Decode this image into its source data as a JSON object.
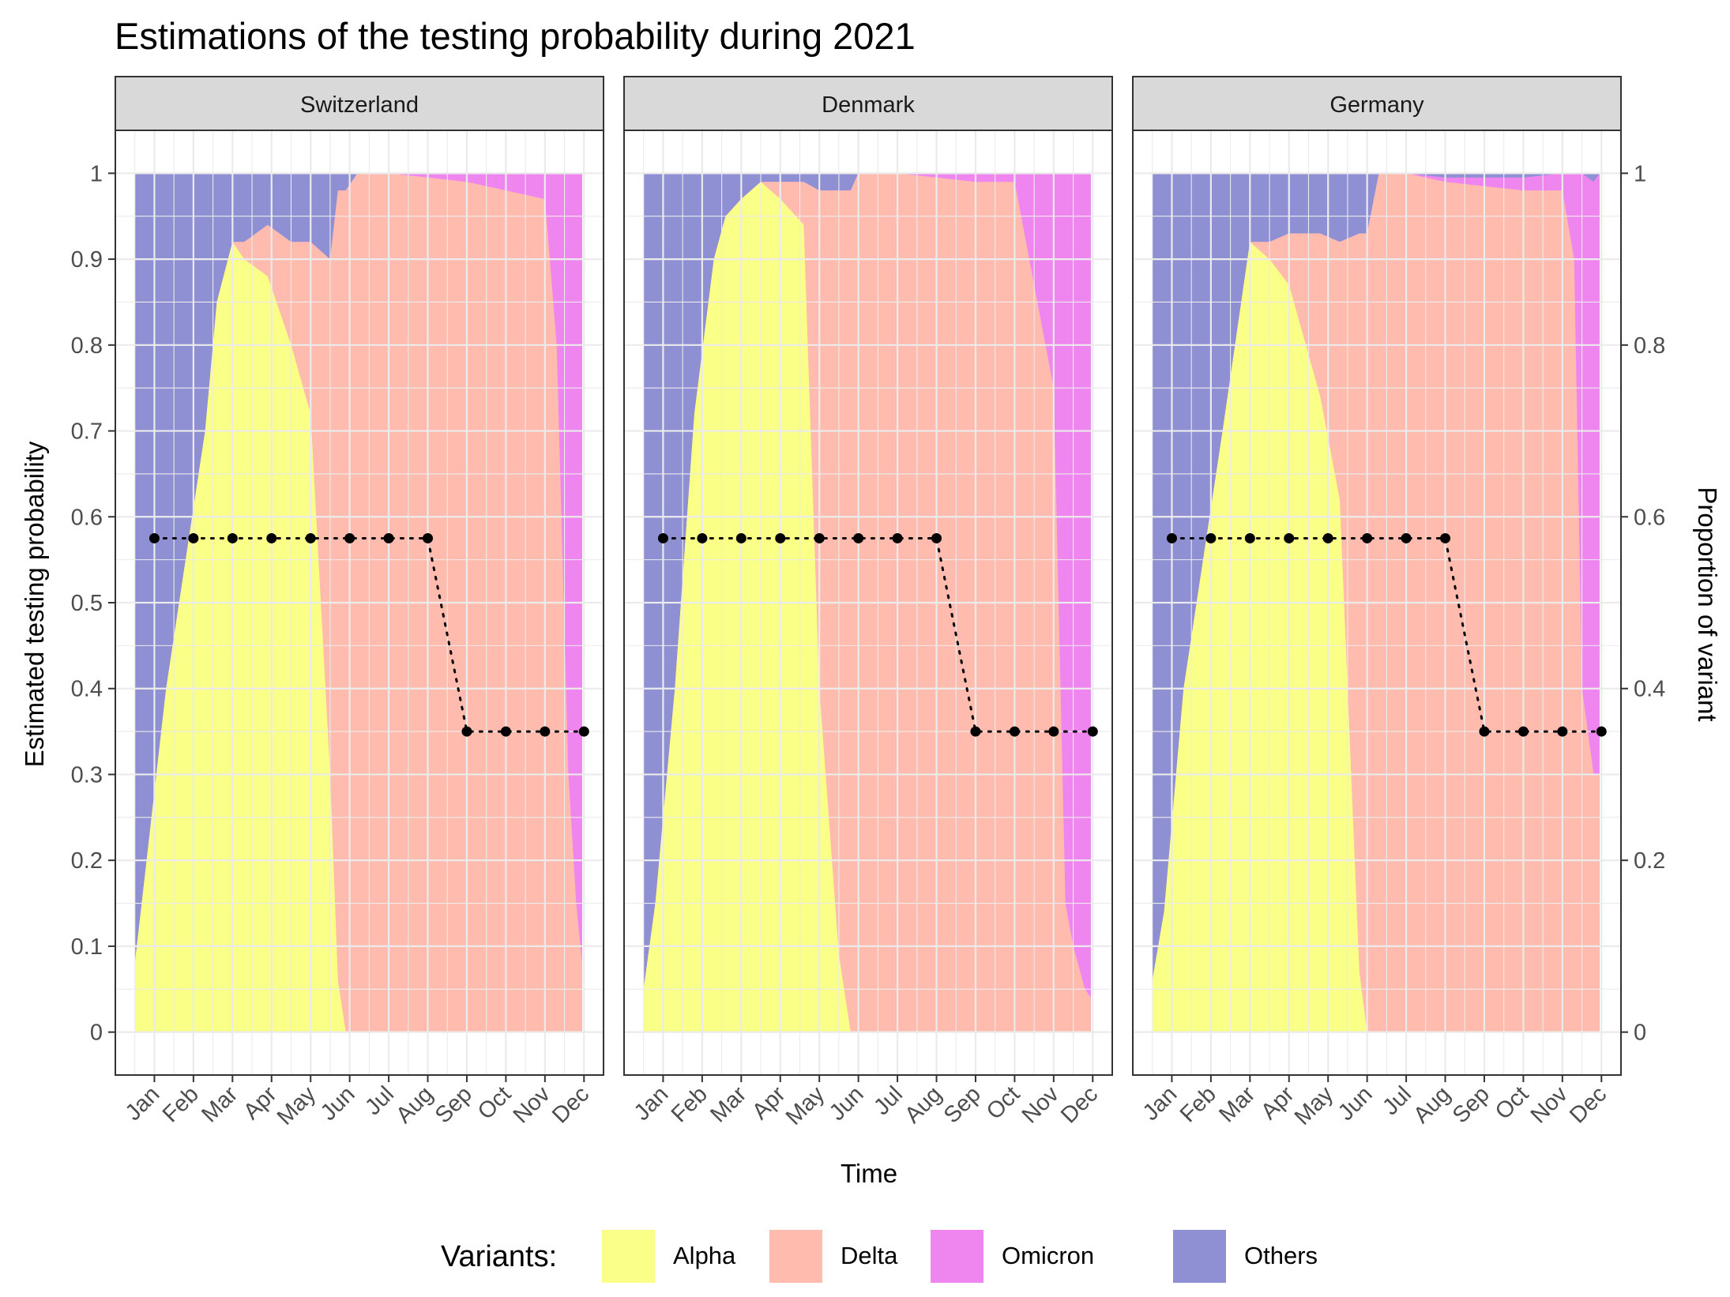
{
  "chart_data": {
    "type": "area",
    "title": "Estimations of the testing probability during 2021",
    "xlabel": "Time",
    "ylabel": "Estimated testing probability",
    "y2label": "Proportion of variant",
    "ylim": [
      -0.05,
      1.05
    ],
    "y_ticks": [
      0,
      0.1,
      0.2,
      0.3,
      0.4,
      0.5,
      0.6,
      0.7,
      0.8,
      0.9,
      1
    ],
    "y_tick_labels": [
      "0",
      "0.1",
      "0.2",
      "0.3",
      "0.4",
      "0.5",
      "0.6",
      "0.7",
      "0.8",
      "0.9",
      "1"
    ],
    "y2_ticks": [
      0,
      0.2,
      0.4,
      0.6,
      0.8,
      1
    ],
    "y2_tick_labels": [
      "0",
      "0.2",
      "0.4",
      "0.6",
      "0.8",
      "1"
    ],
    "x_tick_labels": [
      "Jan",
      "Feb",
      "Mar",
      "Apr",
      "May",
      "Jun",
      "Jul",
      "Aug",
      "Sep",
      "Oct",
      "Nov",
      "Dec"
    ],
    "legend": {
      "title": "Variants:",
      "position": "bottom",
      "items": [
        {
          "name": "Alpha",
          "color": "#FAFF87"
        },
        {
          "name": "Delta",
          "color": "#FFBCAE"
        },
        {
          "name": "Omicron",
          "color": "#EF86F0"
        },
        {
          "name": "Others",
          "color": "#8F8FD4"
        }
      ]
    },
    "grid": true,
    "panels": [
      {
        "name": "Switzerland",
        "testing_probability": {
          "months": [
            1,
            2,
            3,
            4,
            5,
            6,
            7,
            8,
            9,
            10,
            11,
            12
          ],
          "values": [
            0.575,
            0.575,
            0.575,
            0.575,
            0.575,
            0.575,
            0.575,
            0.575,
            0.35,
            0.35,
            0.35,
            0.35
          ]
        },
        "variant_shares": {
          "x": [
            0.5,
            0.8,
            1.3,
            1.8,
            2.3,
            2.6,
            3.0,
            3.3,
            3.9,
            4.5,
            5.0,
            5.5,
            5.7,
            5.9,
            6.2,
            6.5,
            7.0,
            8.0,
            9.0,
            10.0,
            11.0,
            11.3,
            11.6,
            11.8,
            11.95
          ],
          "alpha": [
            0.08,
            0.2,
            0.4,
            0.55,
            0.7,
            0.85,
            0.92,
            0.9,
            0.88,
            0.8,
            0.72,
            0.3,
            0.06,
            0.0,
            0.0,
            0.0,
            0.0,
            0.0,
            0.0,
            0.0,
            0.0,
            0.0,
            0.0,
            0.0,
            0.0
          ],
          "delta": [
            0.0,
            0.0,
            0.0,
            0.0,
            0.0,
            0.0,
            0.0,
            0.02,
            0.06,
            0.12,
            0.2,
            0.6,
            0.92,
            0.98,
            1.0,
            1.0,
            1.0,
            0.995,
            0.99,
            0.98,
            0.97,
            0.8,
            0.3,
            0.15,
            0.08
          ],
          "omicron": [
            0.0,
            0.0,
            0.0,
            0.0,
            0.0,
            0.0,
            0.0,
            0.0,
            0.0,
            0.0,
            0.0,
            0.0,
            0.0,
            0.0,
            0.0,
            0.0,
            0.0,
            0.005,
            0.01,
            0.02,
            0.03,
            0.2,
            0.7,
            0.85,
            0.92
          ],
          "others": [
            0.92,
            0.8,
            0.6,
            0.45,
            0.3,
            0.15,
            0.08,
            0.08,
            0.06,
            0.08,
            0.08,
            0.1,
            0.02,
            0.02,
            0.0,
            0.0,
            0.0,
            0.0,
            0.0,
            0.0,
            0.0,
            0.0,
            0.0,
            0.0,
            0.0
          ]
        }
      },
      {
        "name": "Denmark",
        "testing_probability": {
          "months": [
            1,
            2,
            3,
            4,
            5,
            6,
            7,
            8,
            9,
            10,
            11,
            12
          ],
          "values": [
            0.575,
            0.575,
            0.575,
            0.575,
            0.575,
            0.575,
            0.575,
            0.575,
            0.35,
            0.35,
            0.35,
            0.35
          ]
        },
        "variant_shares": {
          "x": [
            0.5,
            0.8,
            1.3,
            1.8,
            2.3,
            2.6,
            3.0,
            3.5,
            4.0,
            4.6,
            5.0,
            5.5,
            5.8,
            6.0,
            6.2,
            7.0,
            8.0,
            9.0,
            10.0,
            11.0,
            11.3,
            11.5,
            11.8,
            11.95
          ],
          "alpha": [
            0.05,
            0.15,
            0.4,
            0.72,
            0.9,
            0.95,
            0.97,
            0.99,
            0.97,
            0.94,
            0.4,
            0.09,
            0.0,
            0.0,
            0.0,
            0.0,
            0.0,
            0.0,
            0.0,
            0.0,
            0.0,
            0.0,
            0.0,
            0.0
          ],
          "delta": [
            0.0,
            0.0,
            0.0,
            0.0,
            0.0,
            0.0,
            0.0,
            0.0,
            0.02,
            0.05,
            0.58,
            0.89,
            0.98,
            1.0,
            1.0,
            1.0,
            0.995,
            0.99,
            0.99,
            0.75,
            0.15,
            0.1,
            0.05,
            0.04
          ],
          "omicron": [
            0.0,
            0.0,
            0.0,
            0.0,
            0.0,
            0.0,
            0.0,
            0.0,
            0.0,
            0.0,
            0.0,
            0.0,
            0.0,
            0.0,
            0.0,
            0.0,
            0.005,
            0.01,
            0.01,
            0.25,
            0.85,
            0.9,
            0.95,
            0.96
          ],
          "others": [
            0.95,
            0.85,
            0.6,
            0.28,
            0.1,
            0.05,
            0.03,
            0.01,
            0.01,
            0.01,
            0.02,
            0.02,
            0.02,
            0.0,
            0.0,
            0.0,
            0.0,
            0.0,
            0.0,
            0.0,
            0.0,
            0.0,
            0.0,
            0.0
          ]
        }
      },
      {
        "name": "Germany",
        "testing_probability": {
          "months": [
            1,
            2,
            3,
            4,
            5,
            6,
            7,
            8,
            9,
            10,
            11,
            12
          ],
          "values": [
            0.575,
            0.575,
            0.575,
            0.575,
            0.575,
            0.575,
            0.575,
            0.575,
            0.35,
            0.35,
            0.35,
            0.35
          ]
        },
        "variant_shares": {
          "x": [
            0.5,
            0.8,
            1.3,
            1.8,
            2.3,
            3.0,
            3.5,
            4.0,
            4.8,
            5.3,
            5.8,
            6.0,
            6.3,
            7.0,
            8.0,
            9.0,
            10.0,
            11.0,
            11.3,
            11.5,
            11.8,
            11.95
          ],
          "alpha": [
            0.06,
            0.14,
            0.4,
            0.55,
            0.7,
            0.92,
            0.9,
            0.87,
            0.74,
            0.62,
            0.07,
            0.0,
            0.0,
            0.0,
            0.0,
            0.0,
            0.0,
            0.0,
            0.0,
            0.0,
            0.0,
            0.0
          ],
          "delta": [
            0.0,
            0.0,
            0.0,
            0.0,
            0.0,
            0.0,
            0.02,
            0.06,
            0.19,
            0.3,
            0.86,
            0.93,
            1.0,
            1.0,
            0.99,
            0.985,
            0.98,
            0.98,
            0.9,
            0.4,
            0.3,
            0.3
          ],
          "omicron": [
            0.0,
            0.0,
            0.0,
            0.0,
            0.0,
            0.0,
            0.0,
            0.0,
            0.0,
            0.0,
            0.0,
            0.0,
            0.0,
            0.0,
            0.005,
            0.01,
            0.015,
            0.02,
            0.1,
            0.6,
            0.69,
            0.7
          ],
          "others": [
            0.94,
            0.86,
            0.6,
            0.45,
            0.3,
            0.08,
            0.08,
            0.07,
            0.07,
            0.08,
            0.07,
            0.07,
            0.0,
            0.0,
            0.005,
            0.005,
            0.005,
            0.0,
            0.0,
            0.0,
            0.01,
            0.0
          ]
        }
      }
    ]
  }
}
